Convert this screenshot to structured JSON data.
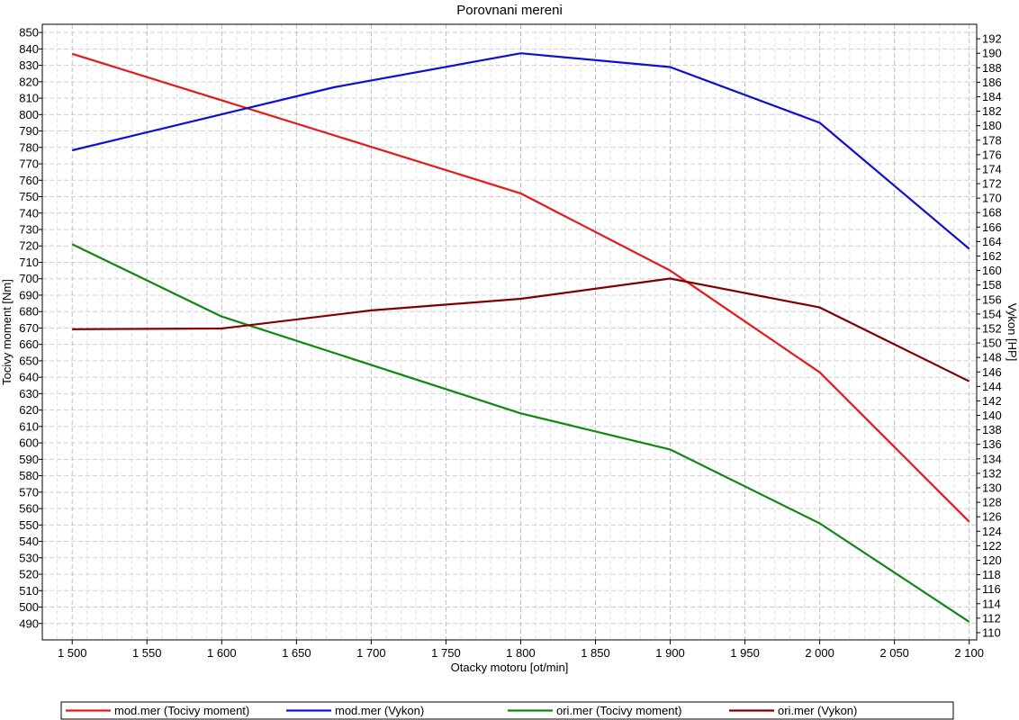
{
  "chart_data": {
    "type": "line",
    "title": "Porovnani mereni",
    "xlabel": "Otacky motoru [ot/min]",
    "ylabel_left": "Tocivy moment [Nm]",
    "ylabel_right": "Vykon [HP]",
    "xlim": [
      1480,
      2105
    ],
    "ylim_left": [
      480,
      855
    ],
    "ylim_right": [
      109,
      194
    ],
    "x_ticks": [
      1500,
      1550,
      1600,
      1650,
      1700,
      1750,
      1800,
      1850,
      1900,
      1950,
      2000,
      2050,
      2100
    ],
    "x_tick_labels": [
      "1 500",
      "1 550",
      "1 600",
      "1 650",
      "1 700",
      "1 750",
      "1 800",
      "1 850",
      "1 900",
      "1 950",
      "2 000",
      "2 050",
      "2 100"
    ],
    "y_left_ticks": [
      490,
      500,
      510,
      520,
      530,
      540,
      550,
      560,
      570,
      580,
      590,
      600,
      610,
      620,
      630,
      640,
      650,
      660,
      670,
      680,
      690,
      700,
      710,
      720,
      730,
      740,
      750,
      760,
      770,
      780,
      790,
      800,
      810,
      820,
      830,
      840,
      850
    ],
    "y_right_ticks": [
      110,
      112,
      114,
      116,
      118,
      120,
      122,
      124,
      126,
      128,
      130,
      132,
      134,
      136,
      138,
      140,
      142,
      144,
      146,
      148,
      150,
      152,
      154,
      156,
      158,
      160,
      162,
      164,
      166,
      168,
      170,
      172,
      174,
      176,
      178,
      180,
      182,
      184,
      186,
      188,
      190,
      192
    ],
    "grid": true,
    "legend_position": "bottom",
    "series": [
      {
        "name": "mod.mer  (Tocivy moment)",
        "axis": "left",
        "color": "#e41a1c",
        "x": [
          1500,
          1800,
          1900,
          2000,
          2100
        ],
        "y": [
          837,
          752,
          705,
          643,
          552
        ]
      },
      {
        "name": "mod.mer  (Vykon)",
        "axis": "right",
        "color": "#1010d0",
        "x": [
          1500,
          1675,
          1800,
          1900,
          2000,
          2100
        ],
        "y": [
          176.6,
          185.3,
          190.0,
          188.1,
          180.4,
          163.0
        ]
      },
      {
        "name": "ori.mer  (Tocivy moment)",
        "axis": "left",
        "color": "#118811",
        "x": [
          1500,
          1600,
          1800,
          1900,
          2000,
          2100
        ],
        "y": [
          721,
          677,
          618,
          596,
          551,
          491
        ]
      },
      {
        "name": "ori.mer  (Vykon)",
        "axis": "right",
        "color": "#800000",
        "x": [
          1500,
          1600,
          1700,
          1800,
          1900,
          2000,
          2100
        ],
        "y": [
          151.9,
          152.0,
          154.5,
          156.1,
          158.9,
          154.9,
          144.7
        ]
      }
    ]
  }
}
